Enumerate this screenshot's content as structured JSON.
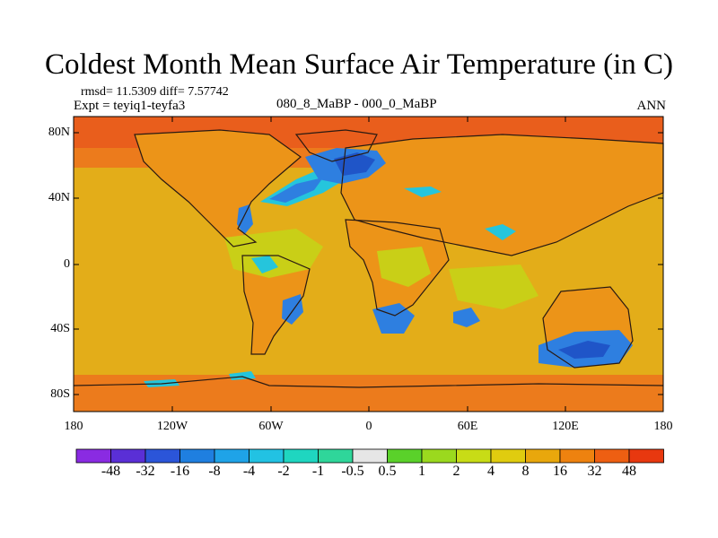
{
  "title": "Coldest Month Mean Surface Air Temperature (in C)",
  "stats": "rmsd= 11.5309 diff= 7.57742",
  "expt": "Expt = teyiq1-teyfa3",
  "experiment_name": "080_8_MaBP - 000_0_MaBP",
  "season": "ANN",
  "lat_labels": [
    "80N",
    "40N",
    "0",
    "40S",
    "80S"
  ],
  "lon_labels": [
    "180",
    "120W",
    "60W",
    "0",
    "60E",
    "120E",
    "180"
  ],
  "colorbar": {
    "labels": [
      "-48",
      "-32",
      "-16",
      "-8",
      "-4",
      "-2",
      "-1",
      "-0.5",
      "0.5",
      "1",
      "2",
      "4",
      "8",
      "16",
      "32",
      "48"
    ],
    "colors": [
      "#8a2be2",
      "#5a2fd6",
      "#2b55d9",
      "#1f7fe0",
      "#1fa3e8",
      "#22c2e3",
      "#1fd6c0",
      "#2fd69a",
      "#e6e6e6",
      "#5ad12a",
      "#9bd91e",
      "#c8dc16",
      "#e0cc0f",
      "#e9a70c",
      "#ee820f",
      "#ee5f12",
      "#e8380f"
    ]
  },
  "map_colors": {
    "background": "#e3ad19",
    "land_dominant": "#ec9418",
    "warm_band": "#ec7b1c",
    "polar_band": "#e95e1c",
    "tropical_green": "#c9cf17",
    "cold_blue": "#2e7fe0",
    "deep_cold": "#1f55c8",
    "cyan": "#25c5dc",
    "coastline": "#2a1a12"
  }
}
